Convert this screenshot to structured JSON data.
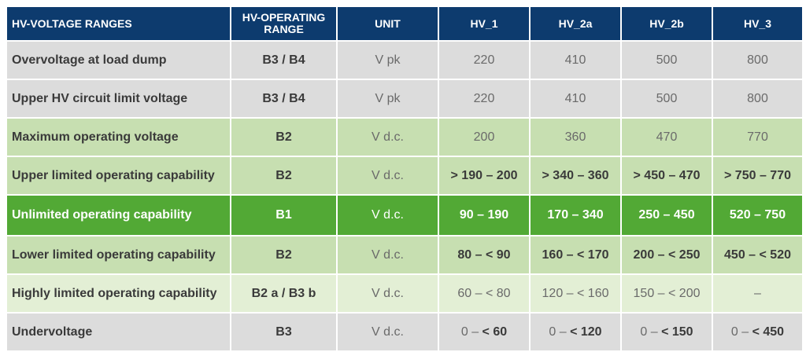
{
  "header": {
    "col1": "HV-VOLTAGE RANGES",
    "col2_line1": "HV-OPERATING",
    "col2_line2": "RANGE",
    "col3": "UNIT",
    "col4": "HV_1",
    "col5": "HV_2a",
    "col6": "HV_2b",
    "col7": "HV_3"
  },
  "rows": [
    {
      "label": "Overvoltage at load dump",
      "range": "B3 / B4",
      "unit": "V pk",
      "v1": "220",
      "v2": "410",
      "v3": "500",
      "v4": "800"
    },
    {
      "label": "Upper HV circuit limit voltage",
      "range": "B3 / B4",
      "unit": "V pk",
      "v1": "220",
      "v2": "410",
      "v3": "500",
      "v4": "800"
    },
    {
      "label": "Maximum operating voltage",
      "range": "B2",
      "unit": "V d.c.",
      "v1": "200",
      "v2": "360",
      "v3": "470",
      "v4": "770"
    },
    {
      "label": "Upper limited operating capability",
      "range": "B2",
      "unit": "V d.c.",
      "v1": "> 190 – 200",
      "v2": "> 340 – 360",
      "v3": "> 450 – 470",
      "v4": "> 750 – 770"
    },
    {
      "label": "Unlimited operating capability",
      "range": "B1",
      "unit": "V d.c.",
      "v1": "90 – 190",
      "v2": "170 – 340",
      "v3": "250 – 450",
      "v4": "520 – 750"
    },
    {
      "label": "Lower limited operating capability",
      "range": "B2",
      "unit": "V d.c.",
      "v1": "80 – < 90",
      "v2": "160 – < 170",
      "v3": "200 – < 250",
      "v4": "450 – < 520"
    },
    {
      "label": "Highly limited operating capability",
      "range": "B2 a / B3 b",
      "unit": "V d.c.",
      "v1": "60 – < 80",
      "v2": "120 – < 160",
      "v3": "150 – < 200",
      "v4": "–"
    },
    {
      "label": "Undervoltage",
      "range": "B3",
      "unit": "V d.c.",
      "v1_pre": "0 – ",
      "v1_post": "< 60",
      "v2_pre": "0 – ",
      "v2_post": "< 120",
      "v3_pre": "0 – ",
      "v3_post": "< 150",
      "v4_pre": "0 – ",
      "v4_post": "< 450"
    }
  ],
  "colors": {
    "header": "#0d3b6e",
    "gray": "#dcdcdc",
    "light_green": "#c7dfb1",
    "green": "#52a935",
    "pale_green": "#e3efd5"
  }
}
